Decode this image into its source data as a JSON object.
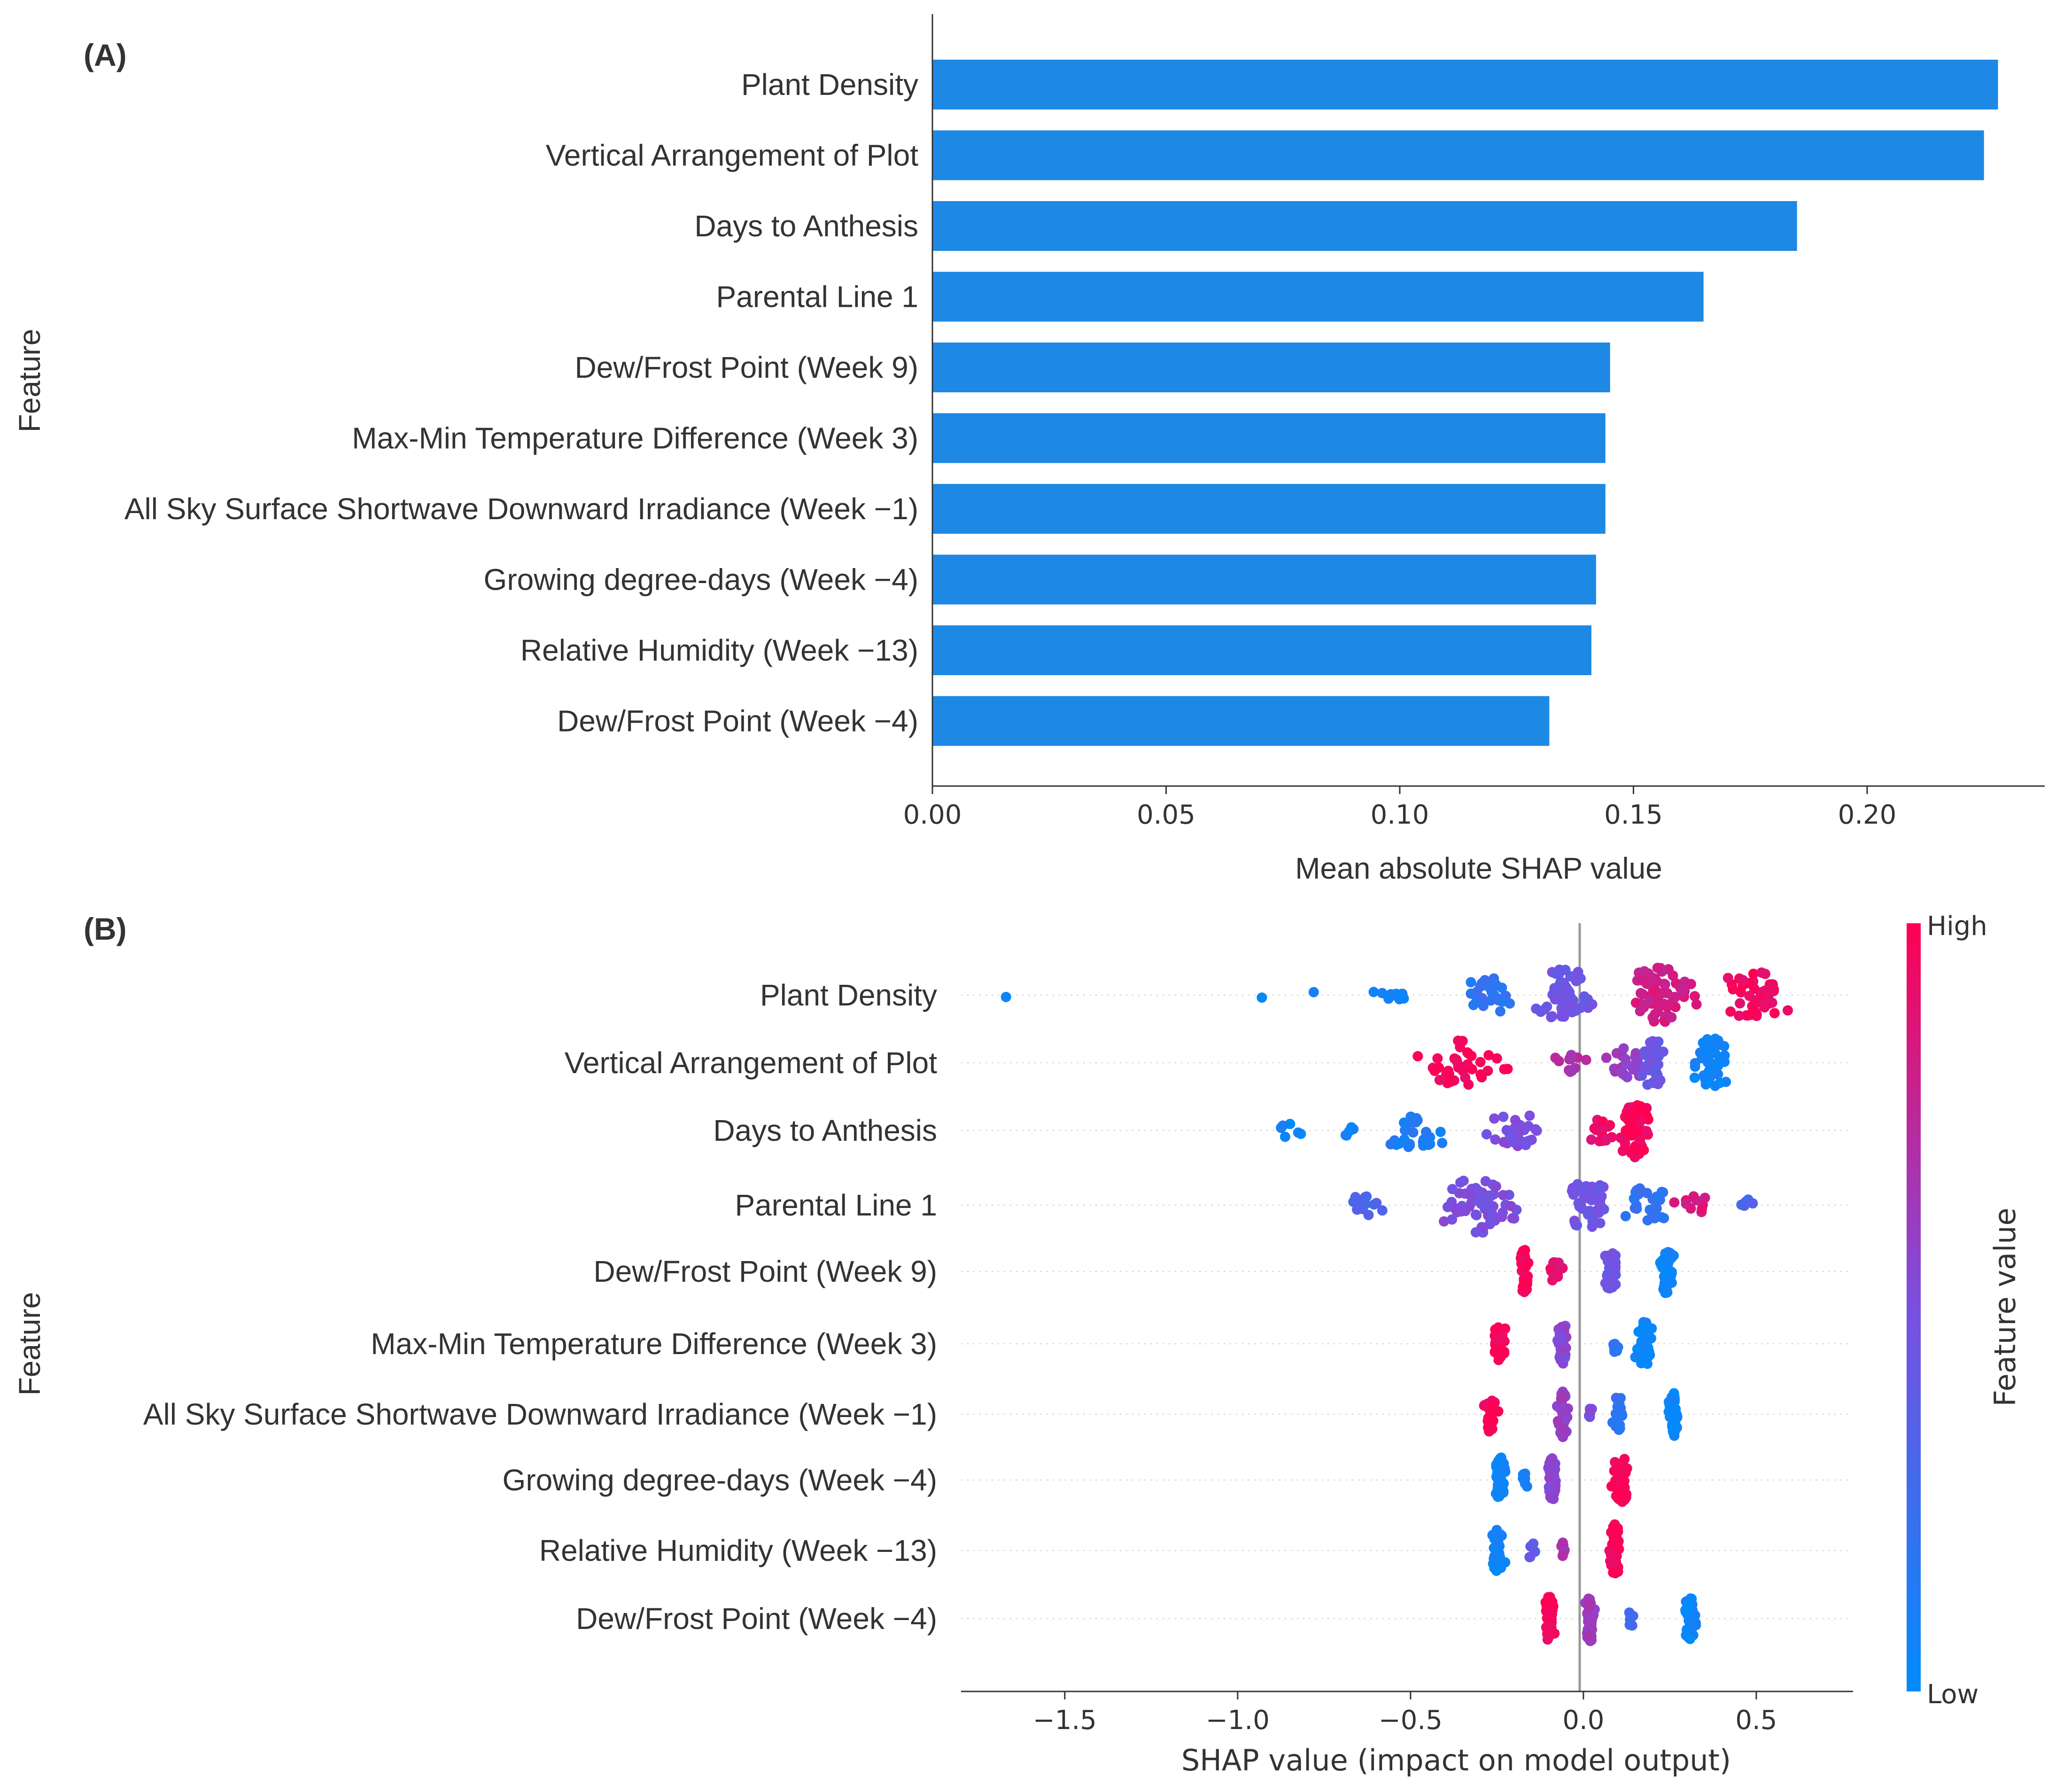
{
  "chart_data": [
    {
      "type": "bar",
      "orientation": "horizontal",
      "panel_label": "(A)",
      "ylabel": "Feature",
      "xlabel": "Mean absolute SHAP value",
      "xlim": [
        0,
        0.238
      ],
      "xticks": [
        0.0,
        0.05,
        0.1,
        0.15,
        0.2
      ],
      "xtick_labels": [
        "0.00",
        "0.05",
        "0.10",
        "0.15",
        "0.20"
      ],
      "bar_color": "#1e88e5",
      "categories": [
        "Plant Density",
        "Vertical Arrangement of Plot",
        "Days to Anthesis",
        "Parental Line 1",
        "Dew/Frost Point (Week 9)",
        "Max-Min Temperature Difference (Week 3)",
        "All Sky Surface Shortwave Downward Irradiance (Week −1)",
        "Growing degree-days (Week −4)",
        "Relative Humidity (Week −13)",
        "Dew/Frost Point (Week −4)"
      ],
      "values": [
        0.228,
        0.225,
        0.185,
        0.165,
        0.145,
        0.144,
        0.144,
        0.142,
        0.141,
        0.132
      ]
    },
    {
      "type": "scatter",
      "subtype": "beeswarm",
      "panel_label": "(B)",
      "ylabel": "Feature",
      "xlabel": "SHAP value (impact on model output)",
      "xlim": [
        -1.8,
        0.78
      ],
      "xticks": [
        -1.5,
        -1.0,
        -0.5,
        0.0,
        0.5
      ],
      "xtick_labels": [
        "−1.5",
        "−1.0",
        "−0.5",
        "0.0",
        "0.5"
      ],
      "colorbar": {
        "title": "Feature value",
        "high_label": "High",
        "low_label": "Low",
        "high_color": "#ff0052",
        "mid_color": "#7b4fe0",
        "low_color": "#008bfb"
      },
      "features": [
        {
          "name": "Plant Density",
          "clusters": [
            {
              "x": -1.67,
              "spread": 0.0,
              "n": 1,
              "fv": 0.02
            },
            {
              "x": -0.93,
              "spread": 0.0,
              "n": 1,
              "fv": 0.05
            },
            {
              "x": -0.78,
              "spread": 0.0,
              "n": 1,
              "fv": 0.05
            },
            {
              "x": -0.55,
              "spread": 0.12,
              "n": 10,
              "fv": 0.08
            },
            {
              "x": -0.28,
              "spread": 0.14,
              "n": 30,
              "fv": 0.18
            },
            {
              "x": -0.05,
              "spread": 0.13,
              "n": 55,
              "fv": 0.45
            },
            {
              "x": 0.22,
              "spread": 0.15,
              "n": 65,
              "fv": 0.82
            },
            {
              "x": 0.5,
              "spread": 0.16,
              "n": 45,
              "fv": 0.95
            }
          ]
        },
        {
          "name": "Vertical Arrangement of Plot",
          "clusters": [
            {
              "x": -0.35,
              "spread": 0.17,
              "n": 40,
              "fv": 0.97
            },
            {
              "x": -0.03,
              "spread": 0.07,
              "n": 12,
              "fv": 0.7
            },
            {
              "x": 0.13,
              "spread": 0.09,
              "n": 25,
              "fv": 0.6
            },
            {
              "x": 0.2,
              "spread": 0.05,
              "n": 45,
              "fv": 0.42
            },
            {
              "x": 0.37,
              "spread": 0.08,
              "n": 45,
              "fv": 0.05
            }
          ]
        },
        {
          "name": "Days to Anthesis",
          "clusters": [
            {
              "x": -0.85,
              "spread": 0.06,
              "n": 6,
              "fv": 0.05
            },
            {
              "x": -0.68,
              "spread": 0.03,
              "n": 5,
              "fv": 0.05
            },
            {
              "x": -0.5,
              "spread": 0.15,
              "n": 28,
              "fv": 0.12
            },
            {
              "x": -0.2,
              "spread": 0.14,
              "n": 28,
              "fv": 0.5
            },
            {
              "x": 0.05,
              "spread": 0.07,
              "n": 15,
              "fv": 0.92
            },
            {
              "x": 0.15,
              "spread": 0.08,
              "n": 70,
              "fv": 0.97
            }
          ]
        },
        {
          "name": "Parental Line 1",
          "clusters": [
            {
              "x": -0.62,
              "spread": 0.09,
              "n": 14,
              "fv": 0.3
            },
            {
              "x": -0.3,
              "spread": 0.16,
              "n": 60,
              "fv": 0.5
            },
            {
              "x": 0.02,
              "spread": 0.1,
              "n": 45,
              "fv": 0.45
            },
            {
              "x": 0.18,
              "spread": 0.08,
              "n": 30,
              "fv": 0.2
            },
            {
              "x": 0.32,
              "spread": 0.08,
              "n": 10,
              "fv": 0.85
            },
            {
              "x": 0.47,
              "spread": 0.05,
              "n": 5,
              "fv": 0.3
            }
          ]
        },
        {
          "name": "Dew/Frost Point (Week 9)",
          "clusters": [
            {
              "x": -0.17,
              "spread": 0.02,
              "n": 40,
              "fv": 0.98
            },
            {
              "x": -0.08,
              "spread": 0.03,
              "n": 15,
              "fv": 0.9
            },
            {
              "x": 0.08,
              "spread": 0.03,
              "n": 35,
              "fv": 0.45
            },
            {
              "x": 0.24,
              "spread": 0.03,
              "n": 40,
              "fv": 0.04
            }
          ]
        },
        {
          "name": "Max-Min Temperature Difference (Week 3)",
          "clusters": [
            {
              "x": -0.24,
              "spread": 0.04,
              "n": 30,
              "fv": 0.98
            },
            {
              "x": -0.06,
              "spread": 0.02,
              "n": 40,
              "fv": 0.55
            },
            {
              "x": 0.09,
              "spread": 0.02,
              "n": 8,
              "fv": 0.15
            },
            {
              "x": 0.18,
              "spread": 0.04,
              "n": 40,
              "fv": 0.04
            }
          ]
        },
        {
          "name": "All Sky Surface Shortwave Downward Irradiance (Week −1)",
          "clusters": [
            {
              "x": -0.27,
              "spread": 0.03,
              "n": 30,
              "fv": 0.98
            },
            {
              "x": -0.06,
              "spread": 0.02,
              "n": 40,
              "fv": 0.6
            },
            {
              "x": 0.02,
              "spread": 0.01,
              "n": 8,
              "fv": 0.5
            },
            {
              "x": 0.1,
              "spread": 0.03,
              "n": 30,
              "fv": 0.2
            },
            {
              "x": 0.26,
              "spread": 0.02,
              "n": 40,
              "fv": 0.04
            }
          ]
        },
        {
          "name": "Growing degree-days (Week −4)",
          "clusters": [
            {
              "x": -0.24,
              "spread": 0.02,
              "n": 40,
              "fv": 0.04
            },
            {
              "x": -0.17,
              "spread": 0.02,
              "n": 8,
              "fv": 0.12
            },
            {
              "x": -0.09,
              "spread": 0.02,
              "n": 40,
              "fv": 0.55
            },
            {
              "x": 0.11,
              "spread": 0.04,
              "n": 40,
              "fv": 0.97
            }
          ]
        },
        {
          "name": "Relative Humidity (Week −13)",
          "clusters": [
            {
              "x": -0.25,
              "spread": 0.03,
              "n": 35,
              "fv": 0.04
            },
            {
              "x": -0.15,
              "spread": 0.02,
              "n": 8,
              "fv": 0.4
            },
            {
              "x": -0.06,
              "spread": 0.01,
              "n": 8,
              "fv": 0.65
            },
            {
              "x": 0.09,
              "spread": 0.02,
              "n": 50,
              "fv": 0.97
            }
          ]
        },
        {
          "name": "Dew/Frost Point (Week −4)",
          "clusters": [
            {
              "x": -0.1,
              "spread": 0.02,
              "n": 40,
              "fv": 0.97
            },
            {
              "x": 0.02,
              "spread": 0.02,
              "n": 40,
              "fv": 0.62
            },
            {
              "x": 0.14,
              "spread": 0.02,
              "n": 6,
              "fv": 0.3
            },
            {
              "x": 0.31,
              "spread": 0.03,
              "n": 35,
              "fv": 0.04
            }
          ]
        }
      ]
    }
  ]
}
